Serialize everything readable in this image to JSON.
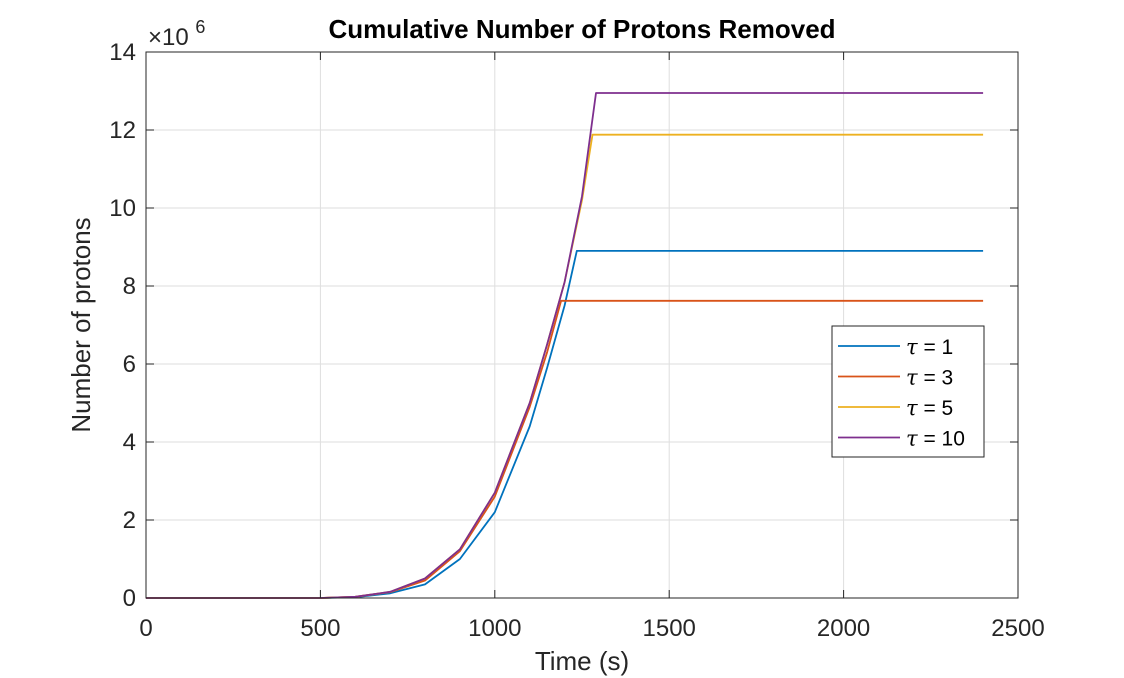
{
  "chart_data": {
    "type": "line",
    "title": "Cumulative Number of Protons Removed",
    "xlabel": "Time (s)",
    "ylabel": "Number of protons",
    "exponent_label": "×10",
    "exponent_power": "6",
    "xlim": [
      0,
      2500
    ],
    "ylim": [
      0,
      14
    ],
    "xticks": [
      0,
      500,
      1000,
      1500,
      2000,
      2500
    ],
    "yticks": [
      0,
      2,
      4,
      6,
      8,
      10,
      12,
      14
    ],
    "grid": true,
    "legend_position": "right",
    "series": [
      {
        "name": "τ = 1",
        "symbol": "τ",
        "value_text": " = 1",
        "color": "#0072BD",
        "points": [
          [
            0,
            0
          ],
          [
            500,
            0
          ],
          [
            600,
            0.02
          ],
          [
            700,
            0.12
          ],
          [
            800,
            0.35
          ],
          [
            900,
            1.0
          ],
          [
            1000,
            2.2
          ],
          [
            1100,
            4.4
          ],
          [
            1150,
            5.9
          ],
          [
            1200,
            7.5
          ],
          [
            1235,
            8.9
          ],
          [
            2400,
            8.9
          ]
        ]
      },
      {
        "name": "τ = 3",
        "symbol": "τ",
        "value_text": " = 3",
        "color": "#D95319",
        "points": [
          [
            0,
            0
          ],
          [
            500,
            0
          ],
          [
            600,
            0.03
          ],
          [
            700,
            0.15
          ],
          [
            800,
            0.45
          ],
          [
            900,
            1.2
          ],
          [
            1000,
            2.6
          ],
          [
            1100,
            4.9
          ],
          [
            1150,
            6.3
          ],
          [
            1190,
            7.62
          ],
          [
            2400,
            7.62
          ]
        ]
      },
      {
        "name": "τ = 5",
        "symbol": "τ",
        "value_text": " = 5",
        "color": "#EDB120",
        "points": [
          [
            0,
            0
          ],
          [
            500,
            0
          ],
          [
            600,
            0.03
          ],
          [
            700,
            0.16
          ],
          [
            800,
            0.5
          ],
          [
            900,
            1.25
          ],
          [
            1000,
            2.7
          ],
          [
            1100,
            5.0
          ],
          [
            1150,
            6.5
          ],
          [
            1200,
            8.1
          ],
          [
            1250,
            10.2
          ],
          [
            1280,
            11.88
          ],
          [
            2400,
            11.88
          ]
        ]
      },
      {
        "name": "τ = 10",
        "symbol": "τ",
        "value_text": " = 10",
        "color": "#7E2F8E",
        "points": [
          [
            0,
            0
          ],
          [
            500,
            0
          ],
          [
            600,
            0.03
          ],
          [
            700,
            0.16
          ],
          [
            800,
            0.5
          ],
          [
            900,
            1.25
          ],
          [
            1000,
            2.7
          ],
          [
            1100,
            5.0
          ],
          [
            1150,
            6.5
          ],
          [
            1200,
            8.1
          ],
          [
            1250,
            10.3
          ],
          [
            1290,
            12.95
          ],
          [
            2400,
            12.95
          ]
        ]
      }
    ]
  }
}
